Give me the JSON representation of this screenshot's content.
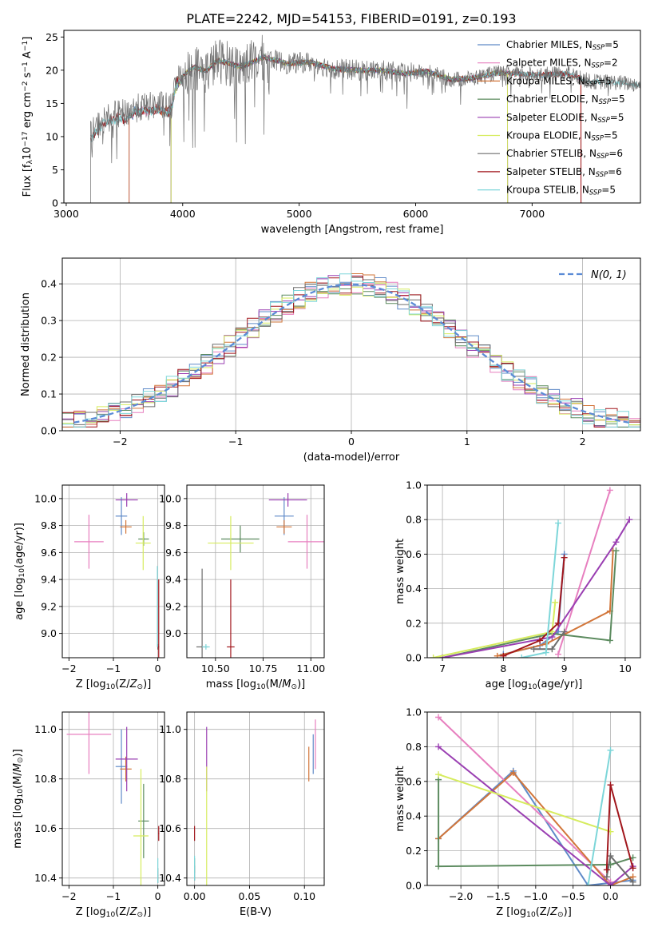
{
  "figure_title": "PLATE=2242, MJD=54153, FIBERID=0191, z=0.193",
  "palette": {
    "chabrier_miles": "#5f8ac8",
    "salpeter_miles": "#e77fbf",
    "kroupa_miles": "#d2763a",
    "chabrier_elodie": "#5c8b5f",
    "salpeter_elodie": "#9a3fb2",
    "kroupa_elodie": "#d6ec5e",
    "chabrier_stelib": "#6d6d6d",
    "salpeter_stelib": "#a1161c",
    "kroupa_stelib": "#7dd6d9"
  },
  "chart_data": [
    {
      "id": "spectrum",
      "type": "line",
      "xlabel": "wavelength [Angstrom, rest frame]",
      "ylabel": "Flux [f_λ10^-17 erg cm^-2 s^-1 A^-1]",
      "xlim": [
        2980,
        7930
      ],
      "ylim": [
        0,
        26
      ],
      "xticks": [
        3000,
        4000,
        5000,
        6000,
        7000
      ],
      "yticks": [
        0,
        5,
        10,
        15,
        20,
        25
      ],
      "legend": "top-right",
      "observed_color": "#6d6d6d",
      "observed": {
        "x": [
          3210,
          3300,
          3400,
          3500,
          3600,
          3700,
          3800,
          3900,
          3950,
          4000,
          4100,
          4200,
          4300,
          4400,
          4500,
          4700,
          4900,
          5100,
          5300,
          5500,
          5700,
          5900,
          6100,
          6300,
          6500,
          6700,
          6900,
          7100,
          7300,
          7500,
          7700,
          7930
        ],
        "y": [
          10.2,
          12.3,
          13.2,
          13.5,
          14.3,
          14.5,
          14.8,
          14.3,
          18.8,
          19.2,
          20.5,
          19.8,
          21.5,
          21.0,
          20.5,
          22.0,
          21.0,
          21.2,
          20.2,
          20.0,
          20.0,
          19.5,
          19.8,
          18.6,
          18.8,
          19.6,
          19.4,
          19.3,
          19.5,
          18.3,
          18.2,
          17.8
        ]
      },
      "series": [
        {
          "name": "Chabrier MILES, N_SSP=5",
          "key": "chabrier_miles",
          "x_start": 3540,
          "x_end": 7420
        },
        {
          "name": "Salpeter MILES, N_SSP=2",
          "key": "salpeter_miles",
          "x_start": 3540,
          "x_end": 7420
        },
        {
          "name": "Kroupa MILES, N_SSP=5",
          "key": "kroupa_miles",
          "x_start": 3540,
          "x_end": 7420
        },
        {
          "name": "Chabrier ELODIE, N_SSP=5",
          "key": "chabrier_elodie",
          "x_start": 3900,
          "x_end": 6790
        },
        {
          "name": "Salpeter ELODIE, N_SSP=5",
          "key": "salpeter_elodie",
          "x_start": 3900,
          "x_end": 6790
        },
        {
          "name": "Kroupa ELODIE, N_SSP=5",
          "key": "kroupa_elodie",
          "x_start": 3900,
          "x_end": 6790
        },
        {
          "name": "Chabrier STELIB, N_SSP=6",
          "key": "chabrier_stelib",
          "x_start": 3210,
          "x_end": 7930
        },
        {
          "name": "Salpeter STELIB, N_SSP=6",
          "key": "salpeter_stelib",
          "x_start": 3210,
          "x_end": 7420
        },
        {
          "name": "Kroupa STELIB, N_SSP=5",
          "key": "kroupa_stelib",
          "x_start": 3210,
          "x_end": 7930
        }
      ]
    },
    {
      "id": "residuals",
      "type": "line",
      "xlabel": "(data-model)/error",
      "ylabel": "Normed distribution",
      "xlim": [
        -2.5,
        2.5
      ],
      "ylim": [
        0,
        0.47
      ],
      "xticks": [
        -2,
        -1,
        0,
        1,
        2
      ],
      "yticks": [
        0.0,
        0.1,
        0.2,
        0.3,
        0.4
      ],
      "grid": true,
      "legend": "top-right",
      "normal_curve_label": "N(0, 1)",
      "normal_curve_color": "#5b8bd6",
      "bin_width": 0.1
    },
    {
      "id": "age_vs_Z",
      "type": "scatter",
      "xlabel": "Z [log10(Z/Z⊙)]",
      "ylabel": "age [log10(age/yr)]",
      "xlim": [
        -2.15,
        0.15
      ],
      "ylim": [
        8.82,
        10.1
      ],
      "xticks": [
        -2,
        -1,
        0
      ],
      "yticks": [
        9.0,
        9.2,
        9.4,
        9.6,
        9.8,
        10.0
      ],
      "grid": true,
      "points": [
        {
          "key": "chabrier_miles",
          "x": -0.82,
          "y": 9.87,
          "xerr": 0.13,
          "yerr": 0.14
        },
        {
          "key": "salpeter_miles",
          "x": -1.55,
          "y": 9.68,
          "xerr": 0.33,
          "yerr": 0.2
        },
        {
          "key": "kroupa_miles",
          "x": -0.72,
          "y": 9.79,
          "xerr": 0.13,
          "yerr": 0.05
        },
        {
          "key": "chabrier_elodie",
          "x": -0.32,
          "y": 9.7,
          "xerr": 0.12,
          "yerr": 0.05
        },
        {
          "key": "salpeter_elodie",
          "x": -0.7,
          "y": 9.99,
          "xerr": 0.25,
          "yerr": 0.05
        },
        {
          "key": "kroupa_elodie",
          "x": -0.33,
          "y": 9.67,
          "xerr": 0.17,
          "yerr": 0.2
        },
        {
          "key": "chabrier_stelib",
          "x": 0.0,
          "y": 8.9,
          "xerr": 0.01,
          "yerr": 0.02
        },
        {
          "key": "salpeter_stelib",
          "x": 0.02,
          "y": 8.9,
          "xerr": 0.01,
          "yerr": 0.5
        },
        {
          "key": "kroupa_stelib",
          "x": -0.01,
          "y": 9.2,
          "xerr": 0.01,
          "yerr": 0.3
        }
      ]
    },
    {
      "id": "age_vs_mass",
      "type": "scatter",
      "xlabel": "mass [log10(M/M⊙)]",
      "ylabel": "",
      "xlim": [
        10.35,
        11.07
      ],
      "ylim": [
        8.82,
        10.1
      ],
      "xticks": [
        10.5,
        10.75,
        11.0
      ],
      "yticks": [
        9.0,
        9.2,
        9.4,
        9.6,
        9.8,
        10.0
      ],
      "grid": true,
      "points": [
        {
          "key": "chabrier_miles",
          "x": 10.86,
          "y": 9.87,
          "xerr": 0.05,
          "yerr": 0.14
        },
        {
          "key": "salpeter_miles",
          "x": 10.98,
          "y": 9.68,
          "xerr": 0.1,
          "yerr": 0.2
        },
        {
          "key": "kroupa_miles",
          "x": 10.86,
          "y": 9.79,
          "xerr": 0.04,
          "yerr": 0.05
        },
        {
          "key": "chabrier_elodie",
          "x": 10.63,
          "y": 9.7,
          "xerr": 0.1,
          "yerr": 0.1
        },
        {
          "key": "salpeter_elodie",
          "x": 10.88,
          "y": 9.99,
          "xerr": 0.1,
          "yerr": 0.05
        },
        {
          "key": "kroupa_elodie",
          "x": 10.58,
          "y": 9.67,
          "xerr": 0.12,
          "yerr": 0.2
        },
        {
          "key": "chabrier_stelib",
          "x": 10.43,
          "y": 8.9,
          "xerr": 0.03,
          "yerr": 0.58
        },
        {
          "key": "salpeter_stelib",
          "x": 10.58,
          "y": 8.9,
          "xerr": 0.02,
          "yerr": 0.5
        },
        {
          "key": "kroupa_stelib",
          "x": 10.45,
          "y": 8.9,
          "xerr": 0.02,
          "yerr": 0.02
        }
      ]
    },
    {
      "id": "mass_weight_vs_age",
      "type": "line",
      "xlabel": "age [log10(age/yr)]",
      "ylabel": "mass weight",
      "xlim": [
        6.75,
        10.25
      ],
      "ylim": [
        0.0,
        1.0
      ],
      "xticks": [
        7,
        8,
        9,
        10
      ],
      "yticks": [
        0.0,
        0.2,
        0.4,
        0.6,
        0.8,
        1.0
      ],
      "grid": true,
      "series": [
        {
          "key": "chabrier_miles",
          "x": [
            8.0,
            8.6,
            8.9,
            9.0
          ],
          "y": [
            0.02,
            0.07,
            0.15,
            0.6
          ]
        },
        {
          "key": "salpeter_miles",
          "x": [
            8.9,
            9.75
          ],
          "y": [
            0.02,
            0.97
          ]
        },
        {
          "key": "kroupa_miles",
          "x": [
            7.9,
            8.7,
            9.75,
            9.8
          ],
          "y": [
            0.01,
            0.08,
            0.27,
            0.62
          ]
        },
        {
          "key": "chabrier_elodie",
          "x": [
            7.0,
            8.8,
            9.75,
            9.85
          ],
          "y": [
            0.0,
            0.14,
            0.1,
            0.62
          ]
        },
        {
          "key": "salpeter_elodie",
          "x": [
            7.0,
            8.8,
            9.85,
            10.07
          ],
          "y": [
            0.0,
            0.12,
            0.67,
            0.8
          ]
        },
        {
          "key": "kroupa_elodie",
          "x": [
            6.85,
            8.8,
            8.85
          ],
          "y": [
            0.0,
            0.15,
            0.32
          ]
        },
        {
          "key": "chabrier_stelib",
          "x": [
            8.5,
            8.8,
            9.0
          ],
          "y": [
            0.05,
            0.05,
            0.15
          ]
        },
        {
          "key": "salpeter_stelib",
          "x": [
            8.0,
            8.6,
            8.9,
            9.0
          ],
          "y": [
            0.01,
            0.1,
            0.2,
            0.58
          ]
        },
        {
          "key": "kroupa_stelib",
          "x": [
            8.3,
            8.7,
            8.9
          ],
          "y": [
            0.0,
            0.03,
            0.78
          ]
        }
      ]
    },
    {
      "id": "mass_vs_Z",
      "type": "scatter",
      "xlabel": "Z [log10(Z/Z⊙)]",
      "ylabel": "mass [log10(M/M⊙)]",
      "xlim": [
        -2.15,
        0.15
      ],
      "ylim": [
        10.37,
        11.07
      ],
      "xticks": [
        -2,
        -1,
        0
      ],
      "yticks": [
        10.4,
        10.6,
        10.8,
        11.0
      ],
      "grid": true,
      "points": [
        {
          "key": "chabrier_miles",
          "x": -0.82,
          "y": 10.85,
          "xerr": 0.13,
          "yerr": 0.15
        },
        {
          "key": "salpeter_miles",
          "x": -1.55,
          "y": 10.98,
          "xerr": 0.5,
          "yerr": 0.16
        },
        {
          "key": "kroupa_miles",
          "x": -0.72,
          "y": 10.84,
          "xerr": 0.13,
          "yerr": 0.05
        },
        {
          "key": "chabrier_elodie",
          "x": -0.32,
          "y": 10.63,
          "xerr": 0.12,
          "yerr": 0.15
        },
        {
          "key": "salpeter_elodie",
          "x": -0.7,
          "y": 10.88,
          "xerr": 0.25,
          "yerr": 0.13
        },
        {
          "key": "kroupa_elodie",
          "x": -0.38,
          "y": 10.57,
          "xerr": 0.17,
          "yerr": 0.27
        },
        {
          "key": "chabrier_stelib",
          "x": 0.0,
          "y": 10.41,
          "xerr": 0.01,
          "yerr": 0.03
        },
        {
          "key": "salpeter_stelib",
          "x": 0.02,
          "y": 10.58,
          "xerr": 0.01,
          "yerr": 0.03
        },
        {
          "key": "kroupa_stelib",
          "x": 0.0,
          "y": 10.43,
          "xerr": 0.01,
          "yerr": 0.05
        }
      ]
    },
    {
      "id": "mass_vs_ebv",
      "type": "scatter",
      "xlabel": "E(B-V)",
      "ylabel": "",
      "xlim": [
        -0.007,
        0.118
      ],
      "ylim": [
        10.37,
        11.07
      ],
      "xticks": [
        0.0,
        0.05,
        0.1
      ],
      "yticks": [
        10.4,
        10.6,
        10.8,
        11.0
      ],
      "grid": true,
      "points": [
        {
          "key": "chabrier_miles",
          "x": 0.108,
          "y": 10.9,
          "xerr": 0.0,
          "yerr": 0.08
        },
        {
          "key": "salpeter_miles",
          "x": 0.11,
          "y": 10.94,
          "xerr": 0.0,
          "yerr": 0.1
        },
        {
          "key": "kroupa_miles",
          "x": 0.104,
          "y": 10.86,
          "xerr": 0.0,
          "yerr": 0.07
        },
        {
          "key": "chabrier_elodie",
          "x": 0.0,
          "y": 10.45,
          "xerr": 0.0,
          "yerr": 0.03
        },
        {
          "key": "salpeter_elodie",
          "x": 0.011,
          "y": 10.88,
          "xerr": 0.0,
          "yerr": 0.13
        },
        {
          "key": "kroupa_elodie",
          "x": 0.011,
          "y": 10.6,
          "xerr": 0.0,
          "yerr": 0.25
        },
        {
          "key": "chabrier_stelib",
          "x": 0.0,
          "y": 10.42,
          "xerr": 0.0,
          "yerr": 0.03
        },
        {
          "key": "salpeter_stelib",
          "x": 0.0,
          "y": 10.58,
          "xerr": 0.0,
          "yerr": 0.03
        },
        {
          "key": "kroupa_stelib",
          "x": 0.0,
          "y": 10.44,
          "xerr": 0.0,
          "yerr": 0.05
        }
      ]
    },
    {
      "id": "mass_weight_vs_Z",
      "type": "line",
      "xlabel": "Z [log10(Z/Z⊙)]",
      "ylabel": "mass weight",
      "xlim": [
        -2.45,
        0.4
      ],
      "ylim": [
        0.0,
        1.0
      ],
      "xticks": [
        -2.0,
        -1.5,
        -1.0,
        -0.5,
        0.0
      ],
      "yticks": [
        0.0,
        0.2,
        0.4,
        0.6,
        0.8,
        1.0
      ],
      "grid": true,
      "series": [
        {
          "key": "chabrier_miles",
          "x": [
            -2.3,
            -1.3,
            -0.3,
            0.3
          ],
          "y": [
            0.27,
            0.66,
            0.0,
            0.03
          ]
        },
        {
          "key": "salpeter_miles",
          "x": [
            -2.3,
            0.0
          ],
          "y": [
            0.97,
            0.02
          ]
        },
        {
          "key": "kroupa_miles",
          "x": [
            -2.3,
            -1.3,
            0.0,
            0.3
          ],
          "y": [
            0.27,
            0.65,
            0.0,
            0.05
          ]
        },
        {
          "key": "chabrier_elodie",
          "x": [
            -2.3,
            -2.3,
            0.0,
            0.3
          ],
          "y": [
            0.61,
            0.11,
            0.12,
            0.16
          ]
        },
        {
          "key": "salpeter_elodie",
          "x": [
            -2.3,
            0.0,
            0.3
          ],
          "y": [
            0.8,
            0.0,
            0.11
          ]
        },
        {
          "key": "kroupa_elodie",
          "x": [
            -2.3,
            0.0
          ],
          "y": [
            0.64,
            0.31
          ]
        },
        {
          "key": "chabrier_stelib",
          "x": [
            -0.05,
            0.0,
            0.3
          ],
          "y": [
            0.05,
            0.17,
            0.02
          ]
        },
        {
          "key": "salpeter_stelib",
          "x": [
            -0.05,
            0.0,
            0.3
          ],
          "y": [
            0.09,
            0.58,
            0.1
          ]
        },
        {
          "key": "kroupa_stelib",
          "x": [
            -0.3,
            0.0
          ],
          "y": [
            0.0,
            0.78
          ]
        }
      ]
    }
  ]
}
